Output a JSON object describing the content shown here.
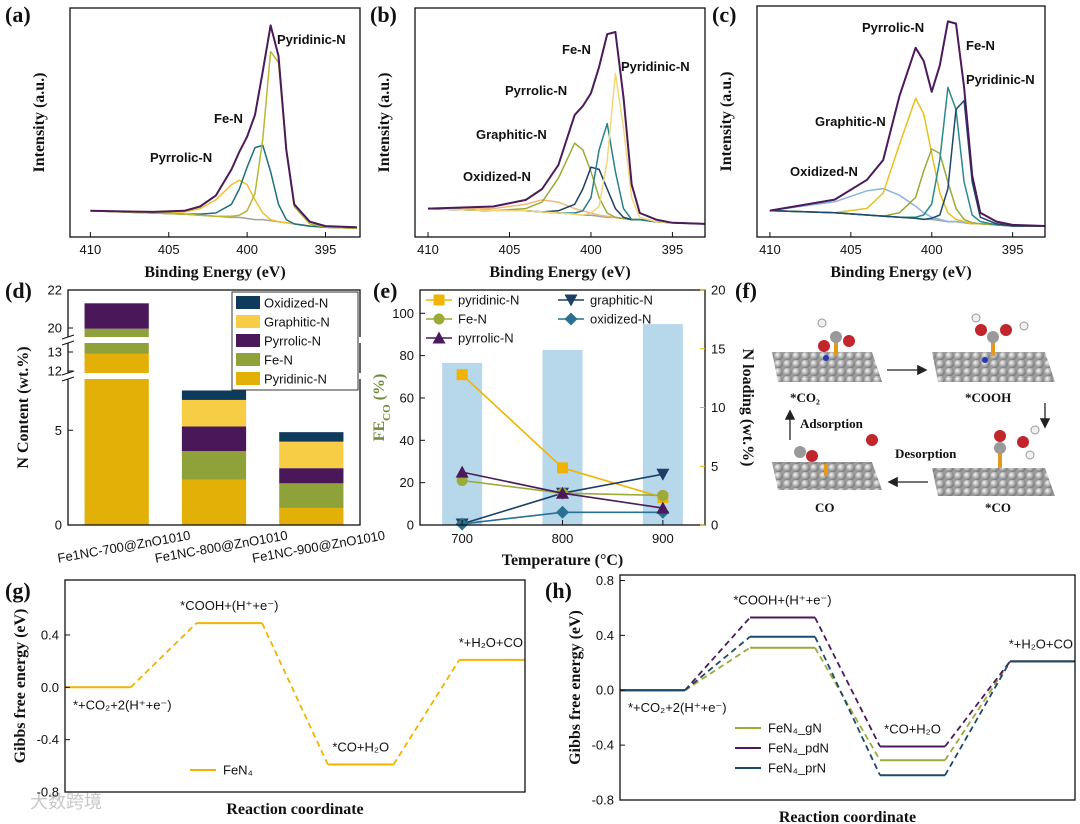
{
  "chart_data": [
    {
      "panel": "(a)",
      "type": "line",
      "xlabel": "Binding Energy (eV)",
      "ylabel": "Intensity (a.u.)",
      "xlim": [
        411.3,
        392.8
      ],
      "xticks": [
        410,
        405,
        400,
        395
      ],
      "ylim": [
        0,
        105
      ],
      "x": [
        410,
        406,
        404,
        403,
        402,
        401,
        400.5,
        400,
        399.5,
        399,
        398.5,
        398,
        397.5,
        397,
        396,
        395,
        393
      ],
      "series": [
        {
          "color": "#a0a0a0",
          "values": [
            12,
            11,
            10.5,
            10,
            9.5,
            9,
            9,
            8.5,
            8,
            8,
            7.5,
            7,
            6.5,
            6,
            5,
            4.5,
            4
          ]
        },
        {
          "name": "Pyrrolic-N",
          "color": "#f0c030",
          "values": [
            12,
            11,
            11.5,
            13,
            17,
            24,
            26,
            24,
            17,
            11,
            8,
            7,
            6.5,
            6,
            5,
            4.5,
            4
          ]
        },
        {
          "name": "Fe-N",
          "color": "#1f6f7a",
          "values": [
            12,
            11,
            10.5,
            10.5,
            11,
            15,
            22,
            32,
            41,
            42,
            30,
            15,
            8,
            6,
            5,
            4.5,
            4
          ]
        },
        {
          "name": "Pyridinic-N",
          "color": "#b9b832",
          "values": [
            12,
            11,
            10.5,
            10,
            9.5,
            9.5,
            10,
            12,
            20,
            45,
            85,
            80,
            40,
            14,
            6,
            4.5,
            4
          ]
        },
        {
          "color": "#4b1a5a",
          "values": [
            12,
            11.5,
            12,
            14,
            19,
            31,
            39,
            46,
            56,
            76,
            97,
            83,
            40,
            15,
            7,
            5,
            4.5
          ]
        }
      ]
    },
    {
      "panel": "(b)",
      "type": "line",
      "xlabel": "Binding Energy (eV)",
      "ylabel": "Intensity (a.u.)",
      "xlim": [
        410.8,
        393
      ],
      "xticks": [
        410,
        405,
        400,
        395
      ],
      "ylim": [
        0,
        105
      ],
      "x": [
        410,
        406,
        404,
        403,
        402,
        401,
        400.5,
        400,
        399.5,
        399,
        398.5,
        398,
        397.5,
        397,
        396,
        395,
        393
      ],
      "series": [
        {
          "color": "#a0a0a0",
          "values": [
            13,
            12,
            12,
            11.5,
            11,
            10.5,
            10,
            10,
            9.5,
            9,
            9,
            8.5,
            8,
            8,
            7,
            6.5,
            6
          ]
        },
        {
          "name": "Oxidized-N",
          "color": "#f0b878",
          "values": [
            13,
            13,
            15,
            17,
            16,
            13,
            12,
            11,
            10,
            9.5,
            9,
            8.5,
            8,
            8,
            7,
            6.5,
            6
          ]
        },
        {
          "name": "Graphitic-N",
          "color": "#9aab3a",
          "values": [
            13,
            12,
            13,
            16,
            27,
            43,
            40,
            30,
            18,
            11,
            9,
            8.5,
            8,
            8,
            7,
            6.5,
            6
          ]
        },
        {
          "name": "Pyrrolic-N",
          "color": "#1d3f66",
          "values": [
            13,
            12,
            12,
            11.5,
            12,
            15,
            22,
            32,
            31,
            22,
            13,
            9,
            8,
            8,
            7,
            6.5,
            6
          ]
        },
        {
          "name": "Fe-N",
          "color": "#2a7f8a",
          "values": [
            13,
            12,
            12,
            11.5,
            11,
            11,
            12,
            18,
            40,
            52,
            30,
            13,
            8,
            8,
            7,
            6.5,
            6
          ]
        },
        {
          "name": "Pyridinic-N",
          "color": "#f2d77a",
          "values": [
            13,
            12,
            12,
            11.5,
            11,
            10.5,
            10,
            11,
            14,
            35,
            75,
            50,
            18,
            9,
            7,
            6.5,
            6
          ]
        },
        {
          "color": "#4b1a5a",
          "values": [
            13,
            14,
            17,
            22,
            33,
            56,
            60,
            66,
            78,
            93,
            94,
            64,
            24,
            11,
            8,
            6.5,
            6
          ]
        }
      ]
    },
    {
      "panel": "(c)",
      "type": "line",
      "xlabel": "Binding Energy (eV)",
      "ylabel": "Intensity (a.u.)",
      "xlim": [
        410.8,
        393
      ],
      "xticks": [
        410,
        405,
        400,
        395
      ],
      "ylim": [
        0,
        105
      ],
      "x": [
        410,
        406,
        404,
        403,
        402,
        401,
        400.5,
        400,
        399.5,
        399,
        398.5,
        398,
        397.5,
        397,
        396,
        395,
        393
      ],
      "series": [
        {
          "color": "#a0a0a0",
          "values": [
            12,
            11,
            10,
            9.5,
            9,
            8.5,
            8,
            8,
            7.5,
            7,
            7,
            6.5,
            6,
            6,
            5.5,
            5,
            5
          ]
        },
        {
          "name": "Oxidized-N",
          "color": "#8ab4e0",
          "values": [
            12,
            16,
            21,
            22,
            19,
            14,
            11,
            9,
            8,
            7,
            7,
            6.5,
            6,
            6,
            5.5,
            5,
            5
          ]
        },
        {
          "name": "Graphitic-N",
          "color": "#e8c020",
          "values": [
            12,
            11,
            13,
            20,
            42,
            63,
            56,
            38,
            20,
            11,
            8,
            7,
            6,
            6,
            5.5,
            5,
            5
          ]
        },
        {
          "name": "Pyrrolic-N",
          "color": "#9aab3a",
          "values": [
            12,
            11,
            10,
            9.5,
            11,
            18,
            30,
            40,
            38,
            25,
            13,
            8,
            6.5,
            6,
            5.5,
            5,
            5
          ]
        },
        {
          "name": "Fe-N",
          "color": "#2a8a8a",
          "values": [
            12,
            11,
            10,
            9.5,
            9,
            9,
            10,
            15,
            35,
            68,
            58,
            25,
            10,
            7,
            5.5,
            5,
            5
          ]
        },
        {
          "name": "Pyridinic-N",
          "color": "#1d4a6b",
          "values": [
            12,
            11,
            10,
            9.5,
            9,
            8.5,
            8,
            8.5,
            10,
            22,
            58,
            62,
            25,
            9,
            6,
            5,
            5
          ]
        },
        {
          "color": "#4b1a5a",
          "values": [
            12,
            17,
            26,
            35,
            64,
            86,
            80,
            66,
            78,
            98,
            97,
            68,
            28,
            11,
            7,
            5.5,
            5
          ]
        }
      ]
    },
    {
      "panel": "(d)",
      "type": "bar",
      "stacked": true,
      "ylabel": "N Content (wt.%)",
      "categories": [
        "Fe1NC-700@ZnO1010",
        "Fe1NC-800@ZnO1010",
        "Fe1NC-900@ZnO1010"
      ],
      "ylim": [
        0,
        22
      ],
      "ysegments": [
        [
          0,
          7.6
        ],
        [
          12,
          13
        ],
        [
          20,
          22
        ]
      ],
      "yticks": [
        0,
        5,
        12,
        13,
        20,
        22
      ],
      "series": [
        {
          "name": "Pyridinic-N",
          "color": "#e3b008",
          "values": [
            12.9,
            2.4,
            0.9
          ]
        },
        {
          "name": "Fe-N",
          "color": "#8fa23a",
          "values": [
            6.9,
            1.5,
            1.3
          ]
        },
        {
          "name": "Pyrrolic-N",
          "color": "#4a1858",
          "values": [
            1.5,
            1.3,
            0.8
          ]
        },
        {
          "name": "Graphitic-N",
          "color": "#f7cd45",
          "values": [
            0,
            1.4,
            1.4
          ]
        },
        {
          "name": "Oxidized-N",
          "color": "#0e3a5c",
          "values": [
            0,
            0.5,
            0.5
          ]
        }
      ]
    },
    {
      "panel": "(e)",
      "type": "combo",
      "xlabel": "Temperature (°C)",
      "ylabel": [
        "FE",
        "CO",
        " (%)"
      ],
      "ylabel_color": "#6e8b3d",
      "y2label": "N loading (wt.%)",
      "y2_color": "#e8b400",
      "x": [
        700,
        800,
        900
      ],
      "xlim": [
        658,
        942
      ],
      "xticks": [
        700,
        800,
        900
      ],
      "ylim": [
        0,
        111
      ],
      "yticks": [
        0,
        20,
        40,
        60,
        80,
        100
      ],
      "y2lim": [
        0,
        20
      ],
      "y2ticks": [
        0,
        5,
        10,
        15,
        20
      ],
      "bars": {
        "color": "#b7d7ea",
        "axis": "y2",
        "values": [
          13.8,
          14.9,
          17.1
        ]
      },
      "series": [
        {
          "name": "pyridinic-N",
          "color": "#f0b400",
          "marker": "square",
          "values": [
            71,
            27,
            13
          ]
        },
        {
          "name": "graphitic-N",
          "color": "#1d3f66",
          "marker": "triangle-down",
          "values": [
            0.5,
            15,
            24
          ]
        },
        {
          "name": "Fe-N",
          "color": "#9aab3a",
          "marker": "circle",
          "values": [
            21,
            15,
            14
          ]
        },
        {
          "name": "oxidized-N",
          "color": "#2a7090",
          "marker": "diamond",
          "values": [
            0.5,
            6,
            6
          ]
        },
        {
          "name": "pyrrolic-N",
          "color": "#4b1a5a",
          "marker": "triangle-up",
          "values": [
            25,
            15,
            8
          ]
        }
      ]
    },
    {
      "panel": "(g)",
      "type": "energy",
      "xlabel": "Reaction coordinate",
      "ylabel": "Gibbs free energy (eV)",
      "categories": [
        "*+CO₂+2(H⁺+e⁻)",
        "*COOH+(H⁺+e⁻)",
        "*CO+H₂O",
        "*+H₂O+CO"
      ],
      "ylim": [
        -0.8,
        0.82
      ],
      "yticks": [
        -0.8,
        -0.4,
        {
          "value": 0,
          "label": "0.0"
        },
        0.4
      ],
      "series": [
        {
          "name": "FeN₄",
          "color": "#f0b400",
          "values": [
            0,
            0.49,
            -0.59,
            0.21
          ]
        }
      ]
    },
    {
      "panel": "(h)",
      "type": "energy",
      "xlabel": "Reaction coordinate",
      "ylabel": "Gibbs free energy (eV)",
      "categories": [
        "*+CO₂+2(H⁺+e⁻)",
        "*COOH+(H⁺+e⁻)",
        "*CO+H₂O",
        "*+H₂O+CO"
      ],
      "ylim": [
        -0.8,
        0.84
      ],
      "yticks": [
        -0.8,
        -0.4,
        {
          "value": 0,
          "label": "0.0"
        },
        0.4,
        0.8
      ],
      "series": [
        {
          "name": "FeN₄_gN",
          "color": "#9aab3a",
          "values": [
            0,
            0.31,
            -0.51,
            0.21
          ]
        },
        {
          "name": "FeN₄_pdN",
          "color": "#4b1a5a",
          "values": [
            0,
            0.53,
            -0.41,
            0.21
          ]
        },
        {
          "name": "FeN₄_prN",
          "color": "#1d4a6b",
          "values": [
            0,
            0.39,
            -0.62,
            0.21
          ]
        }
      ]
    }
  ],
  "diagram": {
    "panel": "(f)",
    "labels": {
      "co2": "*CO₂",
      "cooh": "*COOH",
      "co_ads": "*CO",
      "co": "CO",
      "adsorption": "Adsorption",
      "desorption": "Desorption"
    }
  },
  "watermark": "大数跨境"
}
